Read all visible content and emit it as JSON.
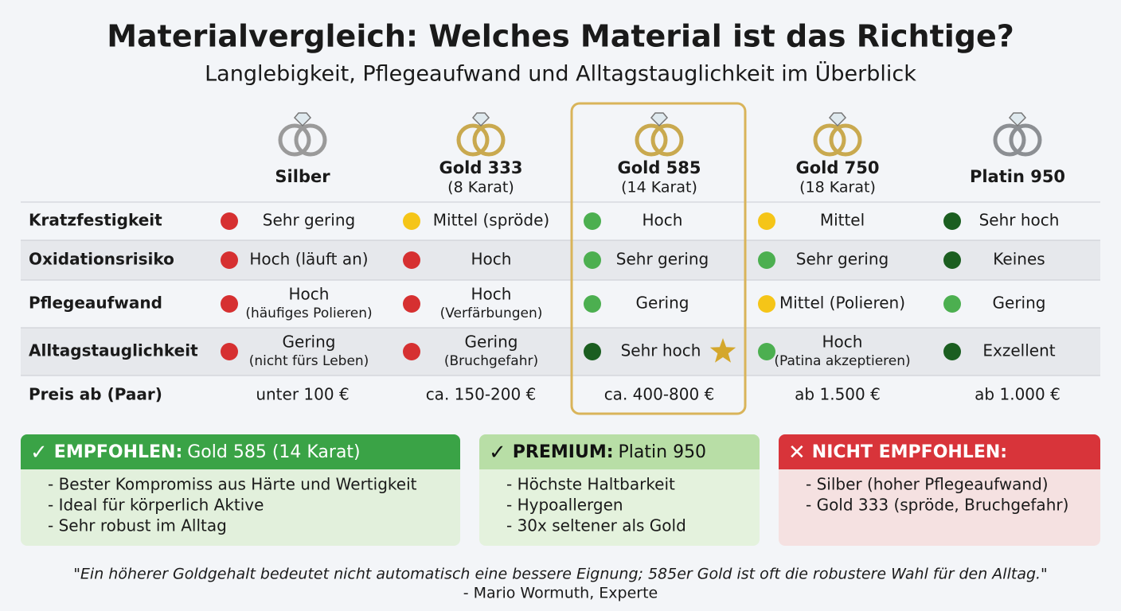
{
  "header": {
    "title": "Materialvergleich: Welches Material ist das Richtige?",
    "subtitle": "Langlebigkeit, Pflegeaufwand und Alltagstauglichkeit im Überblick"
  },
  "table": {
    "highlight": 2,
    "columns": [
      {
        "name": "Silber",
        "ring": "#9a9a9a"
      },
      {
        "name": "Gold 333",
        "sub": "(8 Karat)",
        "ring": "#c9a94f"
      },
      {
        "name": "Gold 585",
        "sub": "(14 Karat)",
        "ring": "#c9a94f"
      },
      {
        "name": "Gold 750",
        "sub": "(18 Karat)",
        "ring": "#c9a94f"
      },
      {
        "name": "Platin 950",
        "ring": "#8c8f93"
      }
    ],
    "rows": [
      {
        "label": "Kratzfestigkeit",
        "cells": [
          {
            "color": "#d63031",
            "text": "Sehr gering"
          },
          {
            "color": "#f5c518",
            "text": "Mittel (spröde)"
          },
          {
            "color": "#4caf50",
            "text": "Hoch"
          },
          {
            "color": "#f5c518",
            "text": "Mittel"
          },
          {
            "color": "#1b5e20",
            "text": "Sehr hoch"
          }
        ]
      },
      {
        "label": "Oxidationsrisiko",
        "shaded": true,
        "cells": [
          {
            "color": "#d63031",
            "text": "Hoch (läuft an)"
          },
          {
            "color": "#d63031",
            "text": "Hoch"
          },
          {
            "color": "#4caf50",
            "text": "Sehr gering"
          },
          {
            "color": "#4caf50",
            "text": "Sehr gering"
          },
          {
            "color": "#1b5e20",
            "text": "Keines"
          }
        ]
      },
      {
        "label": "Pflegeaufwand",
        "cells": [
          {
            "color": "#d63031",
            "text": "Hoch",
            "sub": "(häufiges Polieren)"
          },
          {
            "color": "#d63031",
            "text": "Hoch",
            "sub": "(Verfärbungen)"
          },
          {
            "color": "#4caf50",
            "text": "Gering"
          },
          {
            "color": "#f5c518",
            "text": "Mittel (Polieren)"
          },
          {
            "color": "#4caf50",
            "text": "Gering"
          }
        ]
      },
      {
        "label": "Alltagstauglichkeit",
        "shaded": true,
        "cells": [
          {
            "color": "#d63031",
            "text": "Gering",
            "sub": "(nicht fürs Leben)"
          },
          {
            "color": "#d63031",
            "text": "Gering",
            "sub": "(Bruchgefahr)"
          },
          {
            "color": "#1b5e20",
            "text": "Sehr hoch",
            "star": true
          },
          {
            "color": "#4caf50",
            "text": "Hoch",
            "sub": "(Patina akzeptieren)"
          },
          {
            "color": "#1b5e20",
            "text": "Exzellent"
          }
        ]
      },
      {
        "label": "Preis ab (Paar)",
        "cells": [
          {
            "text": "unter 100 €"
          },
          {
            "text": "ca. 150-200 €"
          },
          {
            "text": "ca. 400-800 €"
          },
          {
            "text": "ab 1.500 €"
          },
          {
            "text": "ab 1.000 €"
          }
        ]
      }
    ]
  },
  "boxes": [
    {
      "mark": "✓",
      "label": "EMPFOHLEN:",
      "text": "Gold 585 (14 Karat)",
      "head": "#3aa346",
      "body": "#e2f0dc",
      "ink": "#ffffff",
      "items": [
        "- Bester Kompromiss aus Härte und Wertigkeit",
        "- Ideal für körperlich Aktive",
        "- Sehr robust im Alltag"
      ]
    },
    {
      "mark": "✓",
      "label": "PREMIUM:",
      "text": "Platin 950",
      "head": "#b8dea6",
      "body": "#e4f2dd",
      "ink": "#111111",
      "items": [
        "- Höchste Haltbarkeit",
        "- Hypoallergen",
        "- 30x seltener als Gold"
      ]
    },
    {
      "mark": "✕",
      "label": "NICHT EMPFOHLEN:",
      "head": "#d8343a",
      "body": "#f5e1e1",
      "ink": "#ffffff",
      "items": [
        "- Silber (hoher Pflegeaufwand)",
        "- Gold 333 (spröde, Bruchgefahr)"
      ]
    }
  ],
  "quote": {
    "text": "\"Ein höherer Goldgehalt bedeutet nicht automatisch eine bessere Eignung; 585er Gold ist oft die robustere Wahl für den Alltag.\"",
    "author": "- Mario Wormuth, Experte"
  }
}
